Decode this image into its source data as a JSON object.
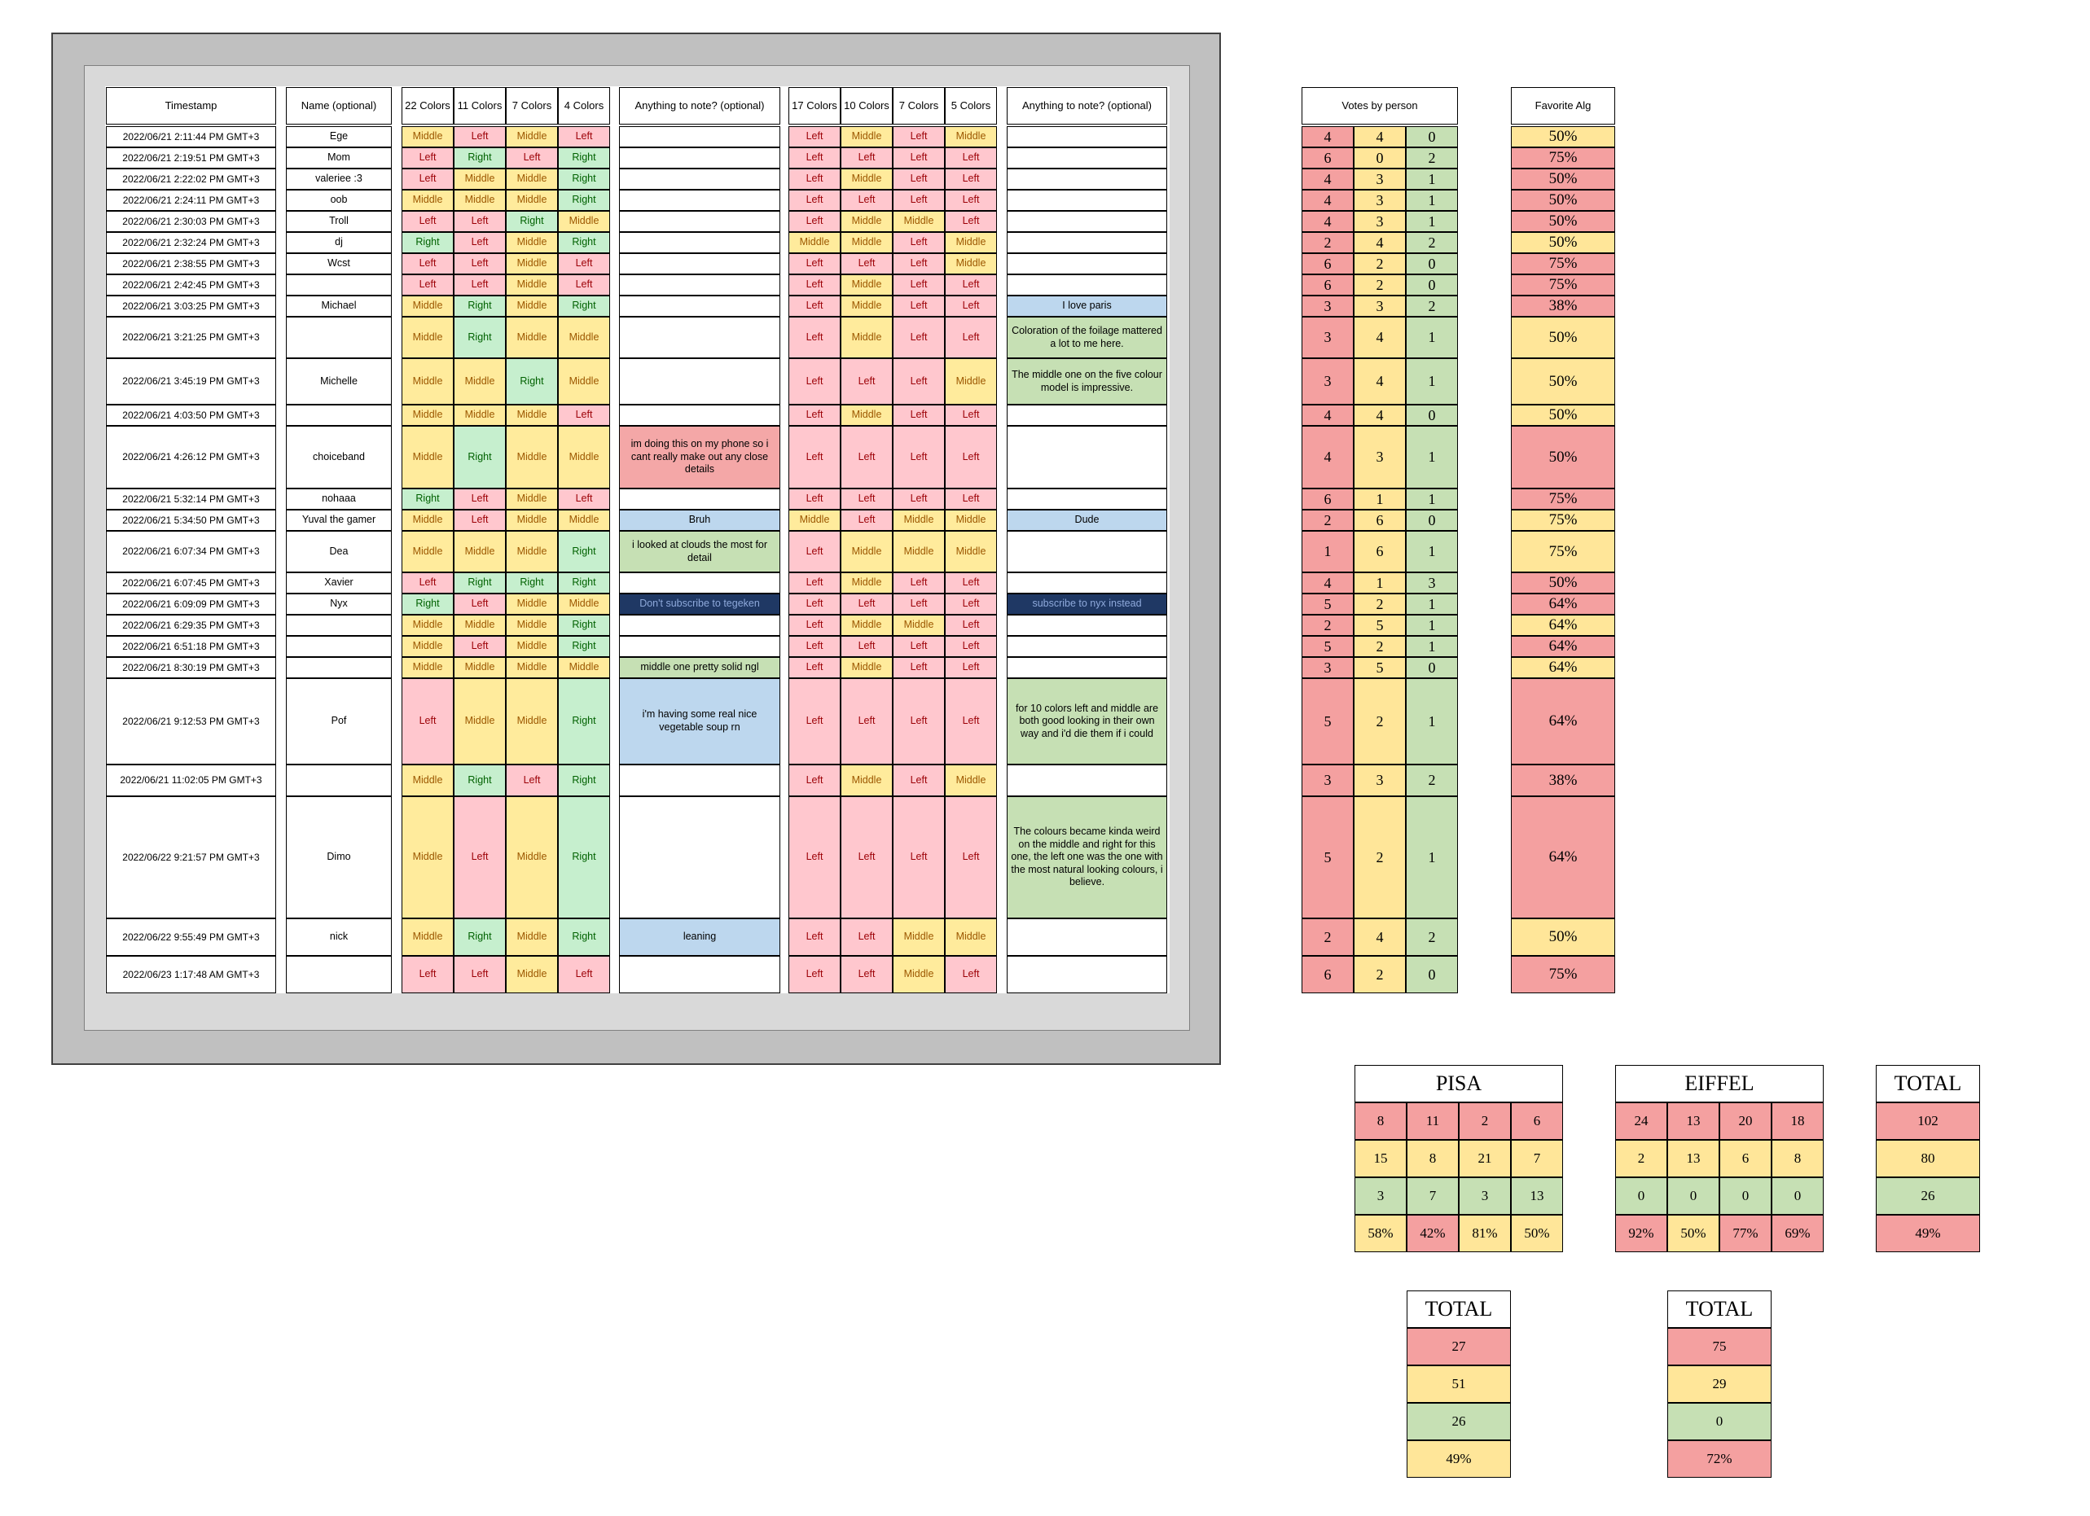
{
  "headers": {
    "timestamp": "Timestamp",
    "name": "Name (optional)",
    "pisa": [
      "22 Colors",
      "11 Colors",
      "7 Colors",
      "4 Colors"
    ],
    "note1": "Anything to note? (optional)",
    "eiffel": [
      "17 Colors",
      "10 Colors",
      "7 Colors",
      "5 Colors"
    ],
    "note2": "Anything to note? (optional)",
    "votes": "Votes by person",
    "favorite": "Favorite Alg"
  },
  "rows": [
    {
      "ts": "2022/06/21 2:11:44 PM GMT+3",
      "name": "Ege",
      "pisa": [
        "Middle",
        "Left",
        "Middle",
        "Left"
      ],
      "note1": "",
      "note1_color": "",
      "eiffel": [
        "Left",
        "Middle",
        "Left",
        "Middle"
      ],
      "note2": "",
      "note2_color": "",
      "votes": [
        "4",
        "4",
        "0"
      ],
      "fav": "50%",
      "fav_color": "y"
    },
    {
      "ts": "2022/06/21 2:19:51 PM GMT+3",
      "name": "Mom",
      "pisa": [
        "Left",
        "Right",
        "Left",
        "Right"
      ],
      "note1": "",
      "note1_color": "",
      "eiffel": [
        "Left",
        "Left",
        "Left",
        "Left"
      ],
      "note2": "",
      "note2_color": "",
      "votes": [
        "6",
        "0",
        "2"
      ],
      "fav": "75%",
      "fav_color": "r"
    },
    {
      "ts": "2022/06/21 2:22:02 PM GMT+3",
      "name": "valeriee :3",
      "pisa": [
        "Left",
        "Middle",
        "Middle",
        "Right"
      ],
      "note1": "",
      "note1_color": "",
      "eiffel": [
        "Left",
        "Middle",
        "Left",
        "Left"
      ],
      "note2": "",
      "note2_color": "",
      "votes": [
        "4",
        "3",
        "1"
      ],
      "fav": "50%",
      "fav_color": "r"
    },
    {
      "ts": "2022/06/21 2:24:11 PM GMT+3",
      "name": "oob",
      "pisa": [
        "Middle",
        "Middle",
        "Middle",
        "Right"
      ],
      "note1": "",
      "note1_color": "",
      "eiffel": [
        "Left",
        "Left",
        "Left",
        "Left"
      ],
      "note2": "",
      "note2_color": "",
      "votes": [
        "4",
        "3",
        "1"
      ],
      "fav": "50%",
      "fav_color": "r"
    },
    {
      "ts": "2022/06/21 2:30:03 PM GMT+3",
      "name": "Troll",
      "pisa": [
        "Left",
        "Left",
        "Right",
        "Middle"
      ],
      "note1": "",
      "note1_color": "",
      "eiffel": [
        "Left",
        "Middle",
        "Middle",
        "Left"
      ],
      "note2": "",
      "note2_color": "",
      "votes": [
        "4",
        "3",
        "1"
      ],
      "fav": "50%",
      "fav_color": "r"
    },
    {
      "ts": "2022/06/21 2:32:24 PM GMT+3",
      "name": "dj",
      "pisa": [
        "Right",
        "Left",
        "Middle",
        "Right"
      ],
      "note1": "",
      "note1_color": "",
      "eiffel": [
        "Middle",
        "Middle",
        "Left",
        "Middle"
      ],
      "note2": "",
      "note2_color": "",
      "votes": [
        "2",
        "4",
        "2"
      ],
      "fav": "50%",
      "fav_color": "y"
    },
    {
      "ts": "2022/06/21 2:38:55 PM GMT+3",
      "name": "Wcst",
      "pisa": [
        "Left",
        "Left",
        "Middle",
        "Left"
      ],
      "note1": "",
      "note1_color": "",
      "eiffel": [
        "Left",
        "Left",
        "Left",
        "Middle"
      ],
      "note2": "",
      "note2_color": "",
      "votes": [
        "6",
        "2",
        "0"
      ],
      "fav": "75%",
      "fav_color": "r"
    },
    {
      "ts": "2022/06/21 2:42:45 PM GMT+3",
      "name": "",
      "pisa": [
        "Left",
        "Left",
        "Middle",
        "Left"
      ],
      "note1": "",
      "note1_color": "",
      "eiffel": [
        "Left",
        "Middle",
        "Left",
        "Left"
      ],
      "note2": "",
      "note2_color": "",
      "votes": [
        "6",
        "2",
        "0"
      ],
      "fav": "75%",
      "fav_color": "r"
    },
    {
      "ts": "2022/06/21 3:03:25 PM GMT+3",
      "name": "Michael",
      "pisa": [
        "Middle",
        "Right",
        "Middle",
        "Right"
      ],
      "note1": "",
      "note1_color": "",
      "eiffel": [
        "Left",
        "Middle",
        "Left",
        "Left"
      ],
      "note2": "I love paris",
      "note2_color": "blue",
      "votes": [
        "3",
        "3",
        "2"
      ],
      "fav": "38%",
      "fav_color": "r"
    },
    {
      "ts": "2022/06/21 3:21:25 PM GMT+3",
      "name": "",
      "pisa": [
        "Middle",
        "Right",
        "Middle",
        "Middle"
      ],
      "note1": "",
      "note1_color": "",
      "eiffel": [
        "Left",
        "Middle",
        "Left",
        "Left"
      ],
      "note2": "Coloration of the foilage mattered a lot to me here.",
      "note2_color": "green",
      "votes": [
        "3",
        "4",
        "1"
      ],
      "fav": "50%",
      "fav_color": "y"
    },
    {
      "ts": "2022/06/21 3:45:19 PM GMT+3",
      "name": "Michelle",
      "pisa": [
        "Middle",
        "Middle",
        "Right",
        "Middle"
      ],
      "note1": "",
      "note1_color": "",
      "eiffel": [
        "Left",
        "Left",
        "Left",
        "Middle"
      ],
      "note2": "The middle one on the five colour model is impressive.",
      "note2_color": "green",
      "votes": [
        "3",
        "4",
        "1"
      ],
      "fav": "50%",
      "fav_color": "y"
    },
    {
      "ts": "2022/06/21 4:03:50 PM GMT+3",
      "name": "",
      "pisa": [
        "Middle",
        "Middle",
        "Middle",
        "Left"
      ],
      "note1": "",
      "note1_color": "",
      "eiffel": [
        "Left",
        "Middle",
        "Left",
        "Left"
      ],
      "note2": "",
      "note2_color": "",
      "votes": [
        "4",
        "4",
        "0"
      ],
      "fav": "50%",
      "fav_color": "y"
    },
    {
      "ts": "2022/06/21 4:26:12 PM GMT+3",
      "name": "choiceband",
      "pisa": [
        "Middle",
        "Right",
        "Middle",
        "Middle"
      ],
      "note1": "im doing this on my phone so i cant really make out any close details",
      "note1_color": "red",
      "eiffel": [
        "Left",
        "Left",
        "Left",
        "Left"
      ],
      "note2": "",
      "note2_color": "",
      "votes": [
        "4",
        "3",
        "1"
      ],
      "fav": "50%",
      "fav_color": "r"
    },
    {
      "ts": "2022/06/21 5:32:14 PM GMT+3",
      "name": "nohaaa",
      "pisa": [
        "Right",
        "Left",
        "Middle",
        "Left"
      ],
      "note1": "",
      "note1_color": "",
      "eiffel": [
        "Left",
        "Left",
        "Left",
        "Left"
      ],
      "note2": "",
      "note2_color": "",
      "votes": [
        "6",
        "1",
        "1"
      ],
      "fav": "75%",
      "fav_color": "r"
    },
    {
      "ts": "2022/06/21 5:34:50 PM GMT+3",
      "name": "Yuval the gamer",
      "pisa": [
        "Middle",
        "Left",
        "Middle",
        "Middle"
      ],
      "note1": "Bruh",
      "note1_color": "blue",
      "eiffel": [
        "Middle",
        "Left",
        "Middle",
        "Middle"
      ],
      "note2": "Dude",
      "note2_color": "blue",
      "votes": [
        "2",
        "6",
        "0"
      ],
      "fav": "75%",
      "fav_color": "y"
    },
    {
      "ts": "2022/06/21 6:07:34 PM GMT+3",
      "name": "Dea",
      "pisa": [
        "Middle",
        "Middle",
        "Middle",
        "Right"
      ],
      "note1": "i looked at clouds the most for detail",
      "note1_color": "green",
      "eiffel": [
        "Left",
        "Middle",
        "Middle",
        "Middle"
      ],
      "note2": "",
      "note2_color": "",
      "votes": [
        "1",
        "6",
        "1"
      ],
      "fav": "75%",
      "fav_color": "y"
    },
    {
      "ts": "2022/06/21 6:07:45 PM GMT+3",
      "name": "Xavier",
      "pisa": [
        "Left",
        "Right",
        "Right",
        "Right"
      ],
      "note1": "",
      "note1_color": "",
      "eiffel": [
        "Left",
        "Middle",
        "Left",
        "Left"
      ],
      "note2": "",
      "note2_color": "",
      "votes": [
        "4",
        "1",
        "3"
      ],
      "fav": "50%",
      "fav_color": "r"
    },
    {
      "ts": "2022/06/21 6:09:09 PM GMT+3",
      "name": "Nyx",
      "pisa": [
        "Right",
        "Left",
        "Middle",
        "Middle"
      ],
      "note1": "Don't subscribe to tegeken",
      "note1_color": "navy",
      "eiffel": [
        "Left",
        "Left",
        "Left",
        "Left"
      ],
      "note2": "subscribe to nyx instead",
      "note2_color": "navy",
      "votes": [
        "5",
        "2",
        "1"
      ],
      "fav": "64%",
      "fav_color": "r"
    },
    {
      "ts": "2022/06/21 6:29:35 PM GMT+3",
      "name": "",
      "pisa": [
        "Middle",
        "Middle",
        "Middle",
        "Right"
      ],
      "note1": "",
      "note1_color": "",
      "eiffel": [
        "Left",
        "Middle",
        "Middle",
        "Left"
      ],
      "note2": "",
      "note2_color": "",
      "votes": [
        "2",
        "5",
        "1"
      ],
      "fav": "64%",
      "fav_color": "y"
    },
    {
      "ts": "2022/06/21 6:51:18 PM GMT+3",
      "name": "",
      "pisa": [
        "Middle",
        "Left",
        "Middle",
        "Right"
      ],
      "note1": "",
      "note1_color": "",
      "eiffel": [
        "Left",
        "Left",
        "Left",
        "Left"
      ],
      "note2": "",
      "note2_color": "",
      "votes": [
        "5",
        "2",
        "1"
      ],
      "fav": "64%",
      "fav_color": "r"
    },
    {
      "ts": "2022/06/21 8:30:19 PM GMT+3",
      "name": "",
      "pisa": [
        "Middle",
        "Middle",
        "Middle",
        "Middle"
      ],
      "note1": "middle one pretty solid ngl",
      "note1_color": "green",
      "eiffel": [
        "Left",
        "Middle",
        "Left",
        "Left"
      ],
      "note2": "",
      "note2_color": "",
      "votes": [
        "3",
        "5",
        "0"
      ],
      "fav": "64%",
      "fav_color": "y"
    },
    {
      "ts": "2022/06/21 9:12:53 PM GMT+3",
      "name": "Pof",
      "pisa": [
        "Left",
        "Middle",
        "Middle",
        "Right"
      ],
      "note1": "i'm having some real nice vegetable soup rn",
      "note1_color": "blue",
      "eiffel": [
        "Left",
        "Left",
        "Left",
        "Left"
      ],
      "note2": "for 10 colors left and middle are both good looking in their own way and i'd die them if i could",
      "note2_color": "green",
      "votes": [
        "5",
        "2",
        "1"
      ],
      "fav": "64%",
      "fav_color": "r"
    },
    {
      "ts": "2022/06/21 11:02:05 PM GMT+3",
      "name": "",
      "pisa": [
        "Middle",
        "Right",
        "Left",
        "Right"
      ],
      "note1": "",
      "note1_color": "",
      "eiffel": [
        "Left",
        "Middle",
        "Left",
        "Middle"
      ],
      "note2": "",
      "note2_color": "",
      "votes": [
        "3",
        "3",
        "2"
      ],
      "fav": "38%",
      "fav_color": "r"
    },
    {
      "ts": "2022/06/22 9:21:57 PM GMT+3",
      "name": "Dimo",
      "pisa": [
        "Middle",
        "Left",
        "Middle",
        "Right"
      ],
      "note1": "",
      "note1_color": "",
      "eiffel": [
        "Left",
        "Left",
        "Left",
        "Left"
      ],
      "note2": "The colours became kinda weird on the middle and right for this one, the left one was the one with the most natural looking colours, i believe.",
      "note2_color": "green",
      "votes": [
        "5",
        "2",
        "1"
      ],
      "fav": "64%",
      "fav_color": "r"
    },
    {
      "ts": "2022/06/22 9:55:49 PM GMT+3",
      "name": "nick",
      "pisa": [
        "Middle",
        "Right",
        "Middle",
        "Right"
      ],
      "note1": "leaning",
      "note1_color": "blue",
      "eiffel": [
        "Left",
        "Left",
        "Middle",
        "Middle"
      ],
      "note2": "",
      "note2_color": "",
      "votes": [
        "2",
        "4",
        "2"
      ],
      "fav": "50%",
      "fav_color": "y"
    },
    {
      "ts": "2022/06/23 1:17:48 AM GMT+3",
      "name": "",
      "pisa": [
        "Left",
        "Left",
        "Middle",
        "Left"
      ],
      "note1": "",
      "note1_color": "",
      "eiffel": [
        "Left",
        "Left",
        "Middle",
        "Left"
      ],
      "note2": "",
      "note2_color": "",
      "votes": [
        "6",
        "2",
        "0"
      ],
      "fav": "75%",
      "fav_color": "r"
    }
  ],
  "pisa_summary": {
    "title": "PISA",
    "left": [
      "8",
      "11",
      "2",
      "6"
    ],
    "middle": [
      "15",
      "8",
      "21",
      "7"
    ],
    "right": [
      "3",
      "7",
      "3",
      "13"
    ],
    "pct": [
      "58%",
      "42%",
      "81%",
      "50%"
    ],
    "pct_colors": [
      "y",
      "r",
      "y",
      "y"
    ]
  },
  "eiffel_summary": {
    "title": "EIFFEL",
    "left": [
      "24",
      "13",
      "20",
      "18"
    ],
    "middle": [
      "2",
      "13",
      "6",
      "8"
    ],
    "right": [
      "0",
      "0",
      "0",
      "0"
    ],
    "pct": [
      "92%",
      "50%",
      "77%",
      "69%"
    ],
    "pct_colors": [
      "r",
      "y",
      "r",
      "r"
    ]
  },
  "total_main": {
    "title": "TOTAL",
    "values": [
      "102",
      "80",
      "26",
      "49%"
    ],
    "pct_color": "r"
  },
  "total_pisa": {
    "title": "TOTAL",
    "values": [
      "27",
      "51",
      "26",
      "49%"
    ],
    "pct_color": "y"
  },
  "total_eiffel": {
    "title": "TOTAL",
    "values": [
      "75",
      "29",
      "0",
      "72%"
    ],
    "pct_color": "r"
  }
}
